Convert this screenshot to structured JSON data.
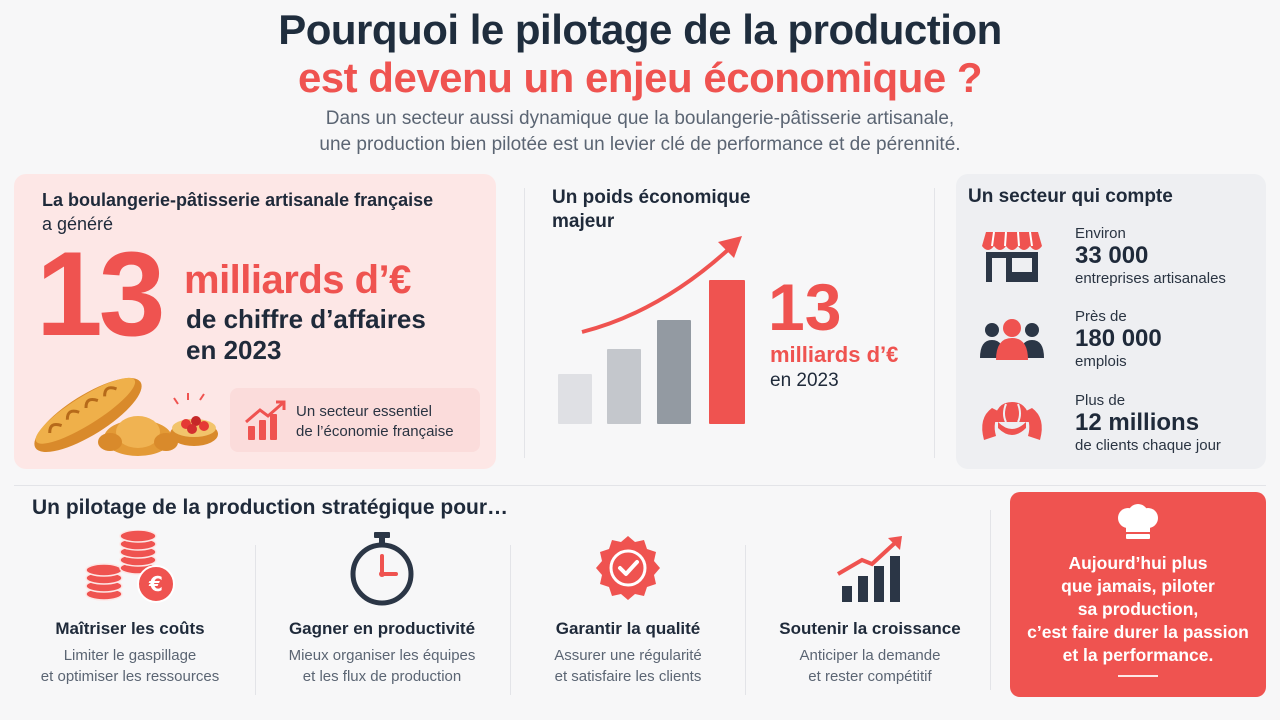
{
  "header": {
    "title_line1": "Pourquoi le pilotage de la production",
    "title_line2": "est devenu un enjeu économique ?",
    "intro_line1": "Dans un secteur aussi dynamique que la boulangerie-pâtisserie artisanale,",
    "intro_line2": "une production bien pilotée est un levier clé de performance et de pérennité."
  },
  "card_revenue": {
    "label_bold": "La boulangerie-pâtisserie artisanale française",
    "label_rest": "a généré",
    "big_number": "13",
    "unit": "milliards d’€",
    "desc_line1": "de chiffre d’affaires",
    "desc_line2": "en 2023",
    "badge_line1": "Un secteur essentiel",
    "badge_line2": "de l’économie française",
    "icons": [
      "baguette-croissant-illustration",
      "tart-icon",
      "growth-chart-icon"
    ]
  },
  "card_weight": {
    "title_line1": "Un poids économique",
    "title_line2": "majeur",
    "big_number": "13",
    "unit": "milliards d’€",
    "year": "en 2023",
    "bar_levels": [
      0.35,
      0.52,
      0.72,
      1.0
    ],
    "bar_colors": [
      "#dfe0e4",
      "#c4c7cc",
      "#939aa2",
      "#ef5350"
    ]
  },
  "card_sector": {
    "title": "Un secteur qui compte",
    "stats": [
      {
        "pre": "Environ",
        "number": "33 000",
        "post": "entreprises artisanales",
        "icon": "shop-icon"
      },
      {
        "pre": "Près de",
        "number": "180 000",
        "post": "emplois",
        "icon": "people-icon"
      },
      {
        "pre": "Plus de",
        "number": "12 millions",
        "post": "de clients chaque jour",
        "icon": "croissant-icon"
      }
    ]
  },
  "strategy": {
    "title": "Un pilotage de la production stratégique pour…",
    "items": [
      {
        "title": "Maîtriser les coûts",
        "desc1": "Limiter le gaspillage",
        "desc2": "et optimiser les ressources",
        "icon": "coins-euro-icon"
      },
      {
        "title": "Gagner en productivité",
        "desc1": "Mieux organiser les équipes",
        "desc2": "et les flux de production",
        "icon": "stopwatch-icon"
      },
      {
        "title": "Garantir la qualité",
        "desc1": "Assurer une régularité",
        "desc2": "et satisfaire les clients",
        "icon": "quality-badge-icon"
      },
      {
        "title": "Soutenir la croissance",
        "desc1": "Anticiper la demande",
        "desc2": "et rester compétitif",
        "icon": "growth-chart-icon"
      }
    ]
  },
  "quote": {
    "line1": "Aujourd’hui plus",
    "line2": "que jamais, piloter",
    "line3": "sa production,",
    "line4": "c’est faire durer la passion",
    "line5": "et la performance.",
    "icon": "chef-hat-icon"
  },
  "colors": {
    "accent": "#ef5350",
    "dark": "#1f2d3d",
    "muted": "#5b6573",
    "pink_bg": "#fde7e6"
  }
}
